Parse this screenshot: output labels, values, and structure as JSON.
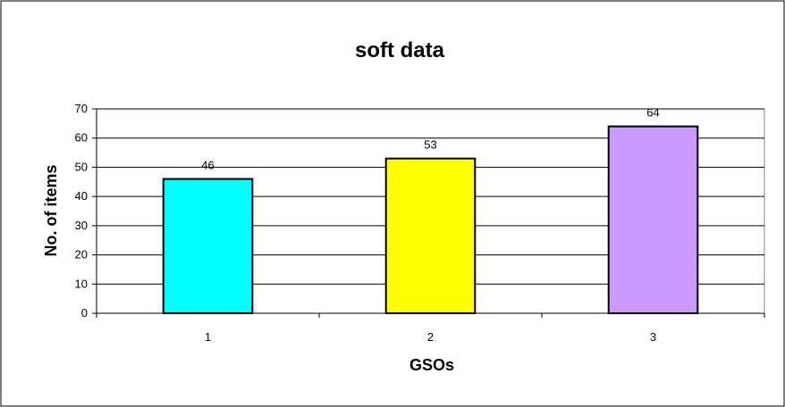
{
  "chart_data": {
    "type": "bar",
    "title": "soft data",
    "xlabel": "GSOs",
    "ylabel": "No. of items",
    "categories": [
      "1",
      "2",
      "3"
    ],
    "values": [
      46,
      53,
      64
    ],
    "ylim": [
      0,
      70
    ],
    "yticks": [
      0,
      10,
      20,
      30,
      40,
      50,
      60,
      70
    ],
    "data_labels": [
      "46",
      "53",
      "64"
    ],
    "bar_colors": [
      "#00ffff",
      "#ffff00",
      "#cc99ff"
    ],
    "grid": true,
    "legend": "none"
  }
}
